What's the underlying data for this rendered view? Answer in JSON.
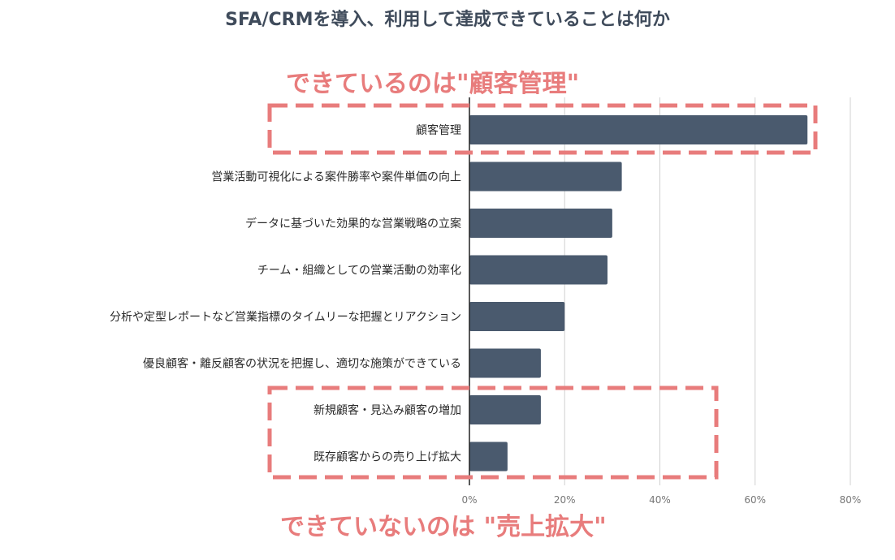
{
  "title": "SFA/CRMを導入、利用して達成できていることは何か",
  "annotations": {
    "top": "できているのは\"顧客管理\"",
    "bottom": "できていないのは \"売上拡大\""
  },
  "colors": {
    "bar": "#4a5a6e",
    "highlight": "#e87c7c",
    "grid": "#d0d0d0",
    "text": "#2a2a2a",
    "tick": "#777777"
  },
  "chart_data": {
    "type": "bar",
    "orientation": "horizontal",
    "title": "SFA/CRMを導入、利用して達成できていることは何か",
    "categories": [
      "顧客管理",
      "営業活動可視化による案件勝率や案件単価の向上",
      "データに基づいた効果的な営業戦略の立案",
      "チーム・組織としての営業活動の効率化",
      "分析や定型レポートなど営業指標のタイムリーな把握とリアクション",
      "優良顧客・離反顧客の状況を把握し、適切な施策ができている",
      "新規顧客・見込み顧客の増加",
      "既存顧客からの売り上げ拡大"
    ],
    "values": [
      71,
      32,
      30,
      29,
      20,
      15,
      15,
      8
    ],
    "xlim": [
      0,
      80
    ],
    "xticks": [
      "0%",
      "20%",
      "40%",
      "60%",
      "80%"
    ],
    "grid": true,
    "highlights": [
      [
        0,
        0
      ],
      [
        6,
        7
      ]
    ]
  }
}
